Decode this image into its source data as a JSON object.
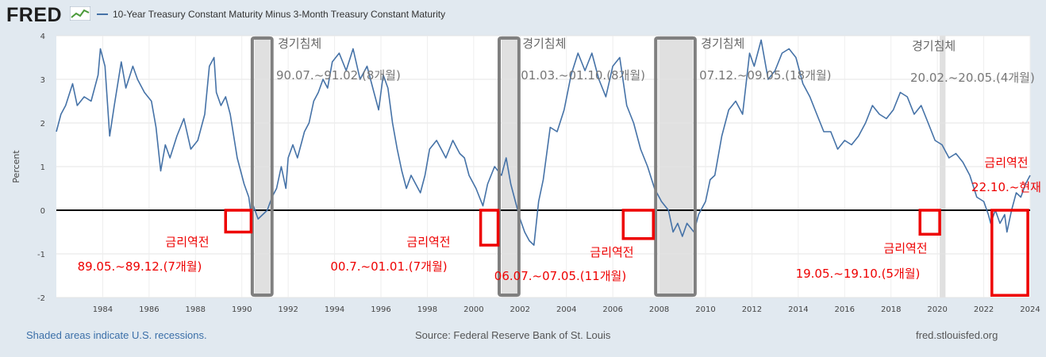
{
  "header": {
    "logo": "FRED",
    "series_title": "10-Year Treasury Constant Maturity Minus 3-Month Treasury Constant Maturity"
  },
  "footer": {
    "note": "Shaded areas indicate U.S. recessions.",
    "source": "Source: Federal Reserve Bank of St. Louis",
    "url": "fred.stlouisfed.org"
  },
  "colors": {
    "line": "#4572a7",
    "recession_fill": "#e0e0e0",
    "recession_box": "#808080",
    "inversion_box": "#ee0000",
    "plot_bg": "#ffffff",
    "page_bg": "#e1e9f0"
  },
  "chart_data": {
    "type": "line",
    "title": "10-Year Treasury Constant Maturity Minus 3-Month Treasury Constant Maturity",
    "xlabel": "",
    "ylabel": "Percent",
    "xlim": [
      1982.0,
      2024.0
    ],
    "ylim": [
      -2,
      4
    ],
    "x_ticks": [
      "1984",
      "1986",
      "1988",
      "1990",
      "1992",
      "1994",
      "1996",
      "1998",
      "2000",
      "2002",
      "2004",
      "2006",
      "2008",
      "2010",
      "2012",
      "2014",
      "2016",
      "2018",
      "2020",
      "2022",
      "2024"
    ],
    "y_ticks": [
      "-2",
      "-1",
      "0",
      "1",
      "2",
      "3",
      "4"
    ],
    "zero_line": 0,
    "series": [
      {
        "name": "10-Year Treasury Constant Maturity Minus 3-Month Treasury Constant Maturity",
        "points": [
          [
            1982.0,
            1.8
          ],
          [
            1982.2,
            2.2
          ],
          [
            1982.4,
            2.4
          ],
          [
            1982.7,
            2.9
          ],
          [
            1982.9,
            2.4
          ],
          [
            1983.2,
            2.6
          ],
          [
            1983.5,
            2.5
          ],
          [
            1983.8,
            3.1
          ],
          [
            1983.9,
            3.7
          ],
          [
            1984.1,
            3.3
          ],
          [
            1984.3,
            1.7
          ],
          [
            1984.5,
            2.4
          ],
          [
            1984.8,
            3.4
          ],
          [
            1985.0,
            2.8
          ],
          [
            1985.3,
            3.3
          ],
          [
            1985.5,
            3.0
          ],
          [
            1985.8,
            2.7
          ],
          [
            1986.1,
            2.5
          ],
          [
            1986.3,
            1.9
          ],
          [
            1986.5,
            0.9
          ],
          [
            1986.7,
            1.5
          ],
          [
            1986.9,
            1.2
          ],
          [
            1987.2,
            1.7
          ],
          [
            1987.5,
            2.1
          ],
          [
            1987.8,
            1.4
          ],
          [
            1988.1,
            1.6
          ],
          [
            1988.4,
            2.2
          ],
          [
            1988.6,
            3.3
          ],
          [
            1988.8,
            3.5
          ],
          [
            1988.9,
            2.7
          ],
          [
            1989.1,
            2.4
          ],
          [
            1989.3,
            2.6
          ],
          [
            1989.5,
            2.2
          ],
          [
            1989.8,
            1.2
          ],
          [
            1990.1,
            0.6
          ],
          [
            1990.3,
            0.3
          ],
          [
            1990.4,
            -0.1
          ],
          [
            1990.5,
            0.1
          ],
          [
            1990.7,
            -0.2
          ],
          [
            1990.9,
            -0.1
          ],
          [
            1991.1,
            0.0
          ],
          [
            1991.3,
            0.3
          ],
          [
            1991.5,
            0.5
          ],
          [
            1991.7,
            1.0
          ],
          [
            1991.9,
            0.5
          ],
          [
            1992.0,
            1.2
          ],
          [
            1992.2,
            1.5
          ],
          [
            1992.4,
            1.2
          ],
          [
            1992.6,
            1.6
          ],
          [
            1992.7,
            1.8
          ],
          [
            1992.9,
            2.0
          ],
          [
            1993.1,
            2.5
          ],
          [
            1993.3,
            2.7
          ],
          [
            1993.5,
            3.0
          ],
          [
            1993.7,
            2.8
          ],
          [
            1993.9,
            3.4
          ],
          [
            1994.2,
            3.6
          ],
          [
            1994.5,
            3.2
          ],
          [
            1994.8,
            3.7
          ],
          [
            1995.1,
            3.0
          ],
          [
            1995.4,
            3.3
          ],
          [
            1995.7,
            2.7
          ],
          [
            1995.9,
            2.3
          ],
          [
            1996.1,
            3.1
          ],
          [
            1996.3,
            2.8
          ],
          [
            1996.5,
            2.0
          ],
          [
            1996.7,
            1.4
          ],
          [
            1996.9,
            0.9
          ],
          [
            1997.1,
            0.5
          ],
          [
            1997.3,
            0.8
          ],
          [
            1997.5,
            0.6
          ],
          [
            1997.7,
            0.4
          ],
          [
            1997.9,
            0.8
          ],
          [
            1998.1,
            1.4
          ],
          [
            1998.4,
            1.6
          ],
          [
            1998.6,
            1.4
          ],
          [
            1998.8,
            1.2
          ],
          [
            1999.1,
            1.6
          ],
          [
            1999.4,
            1.3
          ],
          [
            1999.6,
            1.2
          ],
          [
            1999.8,
            0.8
          ],
          [
            2000.1,
            0.5
          ],
          [
            2000.4,
            0.1
          ],
          [
            2000.6,
            0.6
          ],
          [
            2000.9,
            1.0
          ],
          [
            2001.2,
            0.8
          ],
          [
            2001.4,
            1.2
          ],
          [
            2001.6,
            0.6
          ],
          [
            2001.8,
            0.2
          ],
          [
            2002.0,
            -0.2
          ],
          [
            2002.2,
            -0.5
          ],
          [
            2002.4,
            -0.7
          ],
          [
            2002.6,
            -0.8
          ],
          [
            2002.8,
            0.2
          ],
          [
            2003.0,
            0.7
          ],
          [
            2003.3,
            1.9
          ],
          [
            2003.6,
            1.8
          ],
          [
            2003.9,
            2.3
          ],
          [
            2004.2,
            3.1
          ],
          [
            2004.5,
            3.6
          ],
          [
            2004.8,
            3.2
          ],
          [
            2005.1,
            3.6
          ],
          [
            2005.4,
            3.0
          ],
          [
            2005.7,
            2.6
          ],
          [
            2006.0,
            3.3
          ],
          [
            2006.3,
            3.5
          ],
          [
            2006.6,
            2.4
          ],
          [
            2006.9,
            2.0
          ],
          [
            2007.2,
            1.4
          ],
          [
            2007.5,
            1.0
          ],
          [
            2007.8,
            0.5
          ],
          [
            2008.1,
            0.2
          ],
          [
            2008.4,
            0.0
          ],
          [
            2008.6,
            -0.5
          ],
          [
            2008.8,
            -0.3
          ],
          [
            2009.0,
            -0.6
          ],
          [
            2009.2,
            -0.3
          ],
          [
            2009.5,
            -0.5
          ],
          [
            2009.7,
            -0.1
          ],
          [
            2010.0,
            0.2
          ],
          [
            2010.2,
            0.7
          ],
          [
            2010.4,
            0.8
          ],
          [
            2010.7,
            1.7
          ],
          [
            2011.0,
            2.3
          ],
          [
            2011.3,
            2.5
          ],
          [
            2011.6,
            2.2
          ],
          [
            2011.9,
            3.6
          ],
          [
            2012.1,
            3.3
          ],
          [
            2012.4,
            3.9
          ],
          [
            2012.7,
            3.0
          ],
          [
            2013.0,
            3.2
          ],
          [
            2013.3,
            3.6
          ],
          [
            2013.6,
            3.7
          ],
          [
            2013.9,
            3.5
          ],
          [
            2014.2,
            2.9
          ],
          [
            2014.5,
            2.6
          ],
          [
            2014.8,
            2.2
          ],
          [
            2015.1,
            1.8
          ],
          [
            2015.4,
            1.8
          ],
          [
            2015.7,
            1.4
          ],
          [
            2016.0,
            1.6
          ],
          [
            2016.3,
            1.5
          ],
          [
            2016.6,
            1.7
          ],
          [
            2016.9,
            2.0
          ],
          [
            2017.2,
            2.4
          ],
          [
            2017.5,
            2.2
          ],
          [
            2017.8,
            2.1
          ],
          [
            2018.1,
            2.3
          ],
          [
            2018.4,
            2.7
          ],
          [
            2018.7,
            2.6
          ],
          [
            2019.0,
            2.2
          ],
          [
            2019.3,
            2.4
          ],
          [
            2019.6,
            2.0
          ],
          [
            2019.9,
            1.6
          ],
          [
            2020.2,
            1.5
          ],
          [
            2020.5,
            1.2
          ],
          [
            2020.8,
            1.3
          ],
          [
            2021.1,
            1.1
          ],
          [
            2021.4,
            0.8
          ],
          [
            2021.7,
            0.3
          ],
          [
            2022.0,
            0.2
          ],
          [
            2022.2,
            -0.1
          ],
          [
            2022.3,
            -0.3
          ],
          [
            2022.5,
            0.0
          ],
          [
            2022.7,
            -0.3
          ],
          [
            2022.9,
            -0.1
          ],
          [
            2023.0,
            -0.5
          ],
          [
            2023.2,
            0.0
          ],
          [
            2023.4,
            0.4
          ],
          [
            2023.6,
            0.3
          ],
          [
            2023.8,
            0.6
          ],
          [
            2024.0,
            0.8
          ]
        ]
      }
    ],
    "recessions": [
      [
        1990.55,
        1991.2
      ],
      [
        2001.2,
        2001.87
      ],
      [
        2007.95,
        2009.45
      ],
      [
        2020.1,
        2020.35
      ]
    ],
    "recession_boxes": [
      [
        1990.45,
        1991.3
      ],
      [
        2001.1,
        2001.95
      ],
      [
        2007.85,
        2009.55
      ]
    ],
    "recession_labels": [
      {
        "title": "경기침체",
        "period": "90.07.~91.02.(8개월)",
        "x": 1991.55
      },
      {
        "title": "경기침체",
        "period": "01.03.~01.10.(8개월)",
        "x": 2002.1
      },
      {
        "title": "경기침체",
        "period": "07.12.~09.05.(18개월)",
        "x": 2009.8
      },
      {
        "title": "경기침체",
        "period": "20.02.~20.05.(4개월)",
        "x": 2018.9
      }
    ],
    "inversion_boxes": [
      {
        "x": [
          1989.3,
          1990.4
        ],
        "y": [
          0.0,
          -0.5
        ]
      },
      {
        "x": [
          2000.3,
          2001.05
        ],
        "y": [
          0.0,
          -0.8
        ]
      },
      {
        "x": [
          2006.45,
          2007.75
        ],
        "y": [
          0.0,
          -0.65
        ]
      },
      {
        "x": [
          2019.25,
          2020.1
        ],
        "y": [
          0.0,
          -0.55
        ]
      },
      {
        "x": [
          2022.35,
          2023.9
        ],
        "y": [
          0.0,
          -1.95
        ]
      }
    ],
    "inversion_labels": [
      {
        "title": "금리역전",
        "period": "89.05.~89.12.(7개월)",
        "x": 1989.2
      },
      {
        "title": "금리역전",
        "period": "00.7.~01.01.(7개월)",
        "x": 2000.0
      },
      {
        "title": "금리역전",
        "period": "06.07.~07.05.(11개월)",
        "x": 2005.9
      },
      {
        "title": "금리역전",
        "period": "19.05.~19.10.(5개월)",
        "x": 2018.4
      },
      {
        "title": "금리역전",
        "period": "22.10.~현재",
        "x": 2022.6
      }
    ]
  }
}
